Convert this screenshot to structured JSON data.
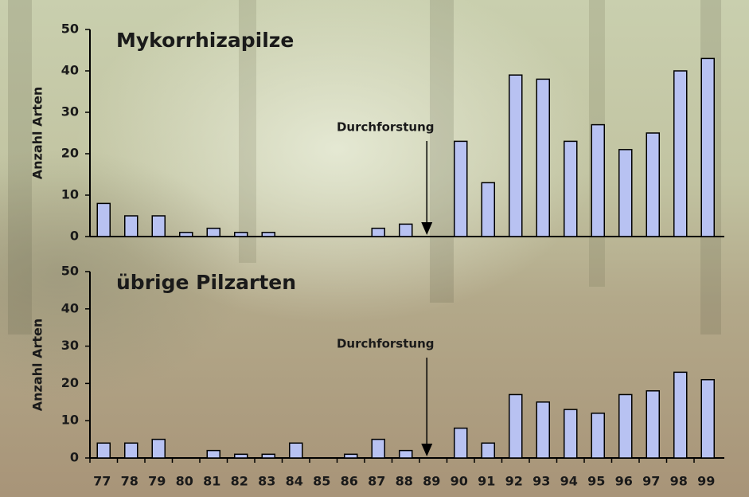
{
  "chart_data": [
    {
      "type": "bar",
      "title": "Mykorrhizapilze",
      "y_label": "Anzahl Arten",
      "values": [
        8,
        5,
        5,
        1,
        2,
        1,
        1,
        0,
        0,
        0,
        2,
        3,
        0,
        23,
        13,
        39,
        38,
        23,
        27,
        21,
        25,
        40,
        43
      ],
      "color": "#b8c2f2",
      "ylim": [
        0,
        50
      ],
      "yticks": [
        0,
        10,
        20,
        30,
        40,
        50
      ],
      "annotation": {
        "text": "Durchforstung",
        "x": "89"
      }
    },
    {
      "type": "bar",
      "title": "übrige Pilzarten",
      "y_label": "Anzahl Arten",
      "categories": [
        "77",
        "78",
        "79",
        "80",
        "81",
        "82",
        "83",
        "84",
        "85",
        "86",
        "87",
        "88",
        "89",
        "90",
        "91",
        "92",
        "93",
        "94",
        "95",
        "96",
        "97",
        "98",
        "99"
      ],
      "values": [
        4,
        4,
        5,
        0,
        2,
        1,
        1,
        4,
        0,
        1,
        5,
        2,
        0,
        8,
        4,
        17,
        15,
        13,
        12,
        17,
        18,
        23,
        21
      ],
      "color": "#b8c2f2",
      "ylim": [
        0,
        50
      ],
      "yticks": [
        0,
        10,
        20,
        30,
        40,
        50
      ],
      "annotation": {
        "text": "Durchforstung",
        "x": "89"
      }
    }
  ]
}
